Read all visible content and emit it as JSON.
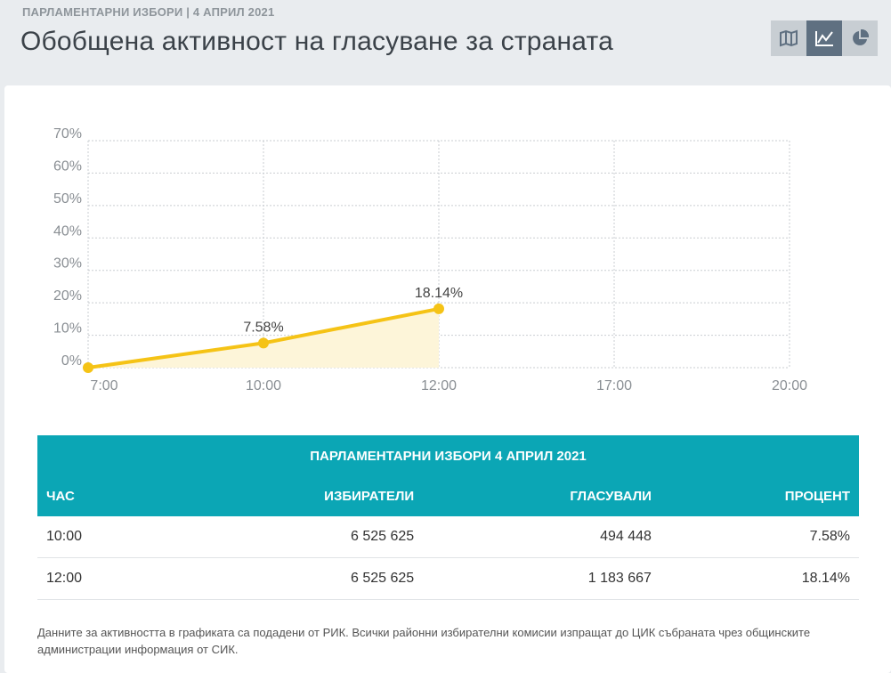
{
  "header": {
    "subtitle": "ПАРЛАМЕНТАРНИ ИЗБОРИ | 4 АПРИЛ 2021",
    "title": "Обобщена активност на гласуване за страната",
    "view_buttons": [
      {
        "icon": "map-icon",
        "active": false
      },
      {
        "icon": "line-chart-icon",
        "active": true
      },
      {
        "icon": "pie-chart-icon",
        "active": false
      }
    ]
  },
  "chart_data": {
    "type": "area",
    "y_ticks": [
      "70%",
      "60%",
      "50%",
      "40%",
      "30%",
      "20%",
      "10%",
      "0%"
    ],
    "x_ticks": [
      "7:00",
      "10:00",
      "12:00",
      "17:00",
      "20:00"
    ],
    "ylim": [
      0,
      70
    ],
    "points": [
      {
        "x": "7:00",
        "y": 0,
        "label": ""
      },
      {
        "x": "10:00",
        "y": 7.58,
        "label": "7.58%"
      },
      {
        "x": "12:00",
        "y": 18.14,
        "label": "18.14%"
      }
    ],
    "line_color": "#f5c316",
    "fill_color": "#fdf5d9",
    "grid": true
  },
  "table": {
    "caption": "ПАРЛАМЕНТАРНИ ИЗБОРИ 4 АПРИЛ 2021",
    "columns": [
      "ЧАС",
      "ИЗБИРАТЕЛИ",
      "ГЛАСУВАЛИ",
      "ПРОЦЕНТ"
    ],
    "rows": [
      [
        "10:00",
        "6 525 625",
        "494 448",
        "7.58%"
      ],
      [
        "12:00",
        "6 525 625",
        "1 183 667",
        "18.14%"
      ]
    ]
  },
  "footnote": "Данните за активността в графиката са подадени от РИК. Всички районни избирателни комисии изпращат до ЦИК събраната чрез общинските администрации информация от СИК.",
  "colors": {
    "accent": "#0ba6b5",
    "active_button": "#5f7081",
    "inactive_button": "#c8ced3"
  }
}
